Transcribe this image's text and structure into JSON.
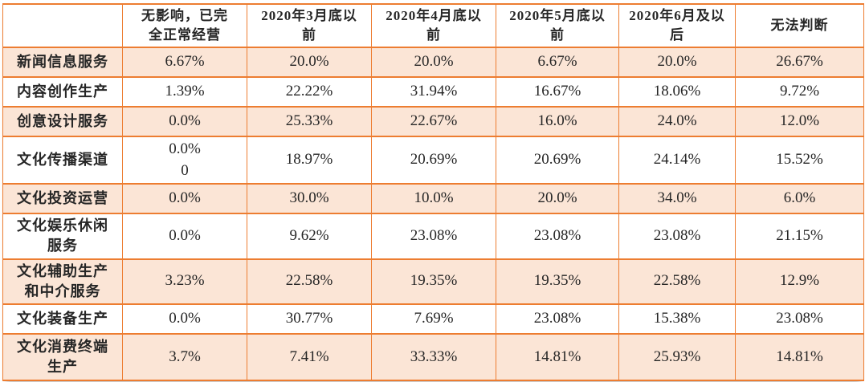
{
  "colors": {
    "border": "#ED7D31",
    "row_shade": "#FBE5D6",
    "text": "#262626",
    "background": "#FFFFFF"
  },
  "table": {
    "columns": [
      "",
      "无影响，已完\n全正常经营",
      "2020年3月底以\n前",
      "2020年4月底以\n前",
      "2020年5月底以\n前",
      "2020年6月及以\n后",
      "无法判断"
    ],
    "rows": [
      {
        "label": "新闻信息服务",
        "cells": [
          "6.67%",
          "20.0%",
          "20.0%",
          "6.67%",
          "20.0%",
          "26.67%"
        ]
      },
      {
        "label": "内容创作生产",
        "cells": [
          "1.39%",
          "22.22%",
          "31.94%",
          "16.67%",
          "18.06%",
          "9.72%"
        ]
      },
      {
        "label": "创意设计服务",
        "cells": [
          "0.0%",
          "25.33%",
          "22.67%",
          "16.0%",
          "24.0%",
          "12.0%"
        ]
      },
      {
        "label": "文化传播渠道",
        "cells": [
          "0.0%\n0",
          "18.97%",
          "20.69%",
          "20.69%",
          "24.14%",
          "15.52%"
        ]
      },
      {
        "label": "文化投资运营",
        "cells": [
          "0.0%",
          "30.0%",
          "10.0%",
          "20.0%",
          "34.0%",
          "6.0%"
        ]
      },
      {
        "label": "文化娱乐休闲\n服务",
        "cells": [
          "0.0%",
          "9.62%",
          "23.08%",
          "23.08%",
          "23.08%",
          "21.15%"
        ]
      },
      {
        "label": "文化辅助生产\n和中介服务",
        "cells": [
          "3.23%",
          "22.58%",
          "19.35%",
          "19.35%",
          "22.58%",
          "12.9%"
        ]
      },
      {
        "label": "文化装备生产",
        "cells": [
          "0.0%",
          "30.77%",
          "7.69%",
          "23.08%",
          "15.38%",
          "23.08%"
        ]
      },
      {
        "label": "文化消费终端\n生产",
        "cells": [
          "3.7%",
          "7.41%",
          "33.33%",
          "14.81%",
          "25.93%",
          "14.81%"
        ]
      }
    ]
  }
}
